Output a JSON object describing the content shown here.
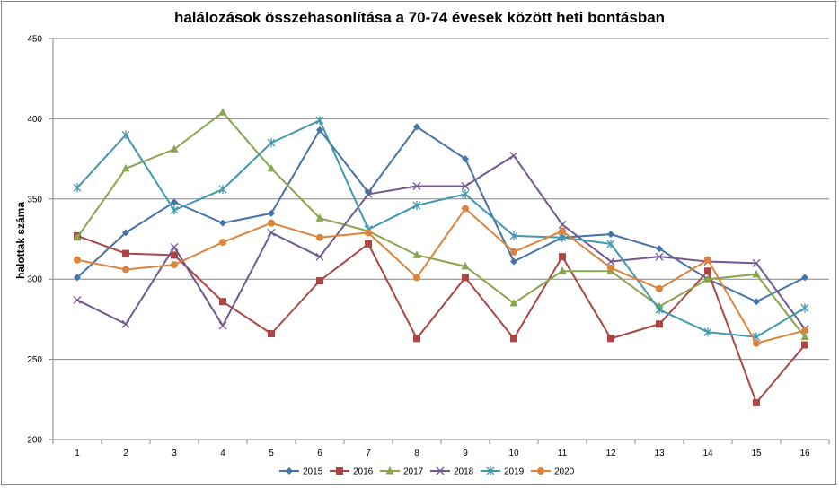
{
  "chart_data": {
    "type": "line",
    "title": "halálozások összehasonlítása a 70-74 évesek között heti bontásban",
    "xlabel": "",
    "ylabel": "halottak száma",
    "ylim": [
      200,
      450
    ],
    "yticks": [
      200,
      250,
      300,
      350,
      400,
      450
    ],
    "categories": [
      "1",
      "2",
      "3",
      "4",
      "5",
      "6",
      "7",
      "8",
      "9",
      "10",
      "11",
      "12",
      "13",
      "14",
      "15",
      "16"
    ],
    "grid": "horizontal",
    "legend_position": "bottom",
    "series": [
      {
        "name": "2015",
        "color": "#4572A7",
        "marker": "diamond",
        "values": [
          301,
          329,
          348,
          335,
          341,
          393,
          354,
          395,
          375,
          311,
          326,
          328,
          319,
          300,
          286,
          301
        ]
      },
      {
        "name": "2016",
        "color": "#AA4643",
        "marker": "square",
        "values": [
          327,
          316,
          315,
          286,
          266,
          299,
          322,
          263,
          301,
          263,
          314,
          263,
          272,
          305,
          223,
          259
        ]
      },
      {
        "name": "2017",
        "color": "#89A54E",
        "marker": "triangle",
        "values": [
          326,
          369,
          381,
          404,
          369,
          338,
          330,
          315,
          308,
          285,
          305,
          305,
          283,
          300,
          303,
          264
        ]
      },
      {
        "name": "2018",
        "color": "#71588F",
        "marker": "x",
        "values": [
          287,
          272,
          320,
          271,
          329,
          314,
          353,
          358,
          358,
          377,
          334,
          311,
          314,
          311,
          310,
          269
        ]
      },
      {
        "name": "2019",
        "color": "#4198AF",
        "marker": "star",
        "values": [
          357,
          390,
          343,
          356,
          385,
          399,
          331,
          346,
          353,
          327,
          326,
          322,
          281,
          267,
          264,
          282
        ]
      },
      {
        "name": "2020",
        "color": "#DB843D",
        "marker": "circle",
        "values": [
          312,
          306,
          309,
          323,
          335,
          326,
          329,
          301,
          344,
          317,
          330,
          307,
          294,
          312,
          260,
          268
        ]
      }
    ]
  }
}
